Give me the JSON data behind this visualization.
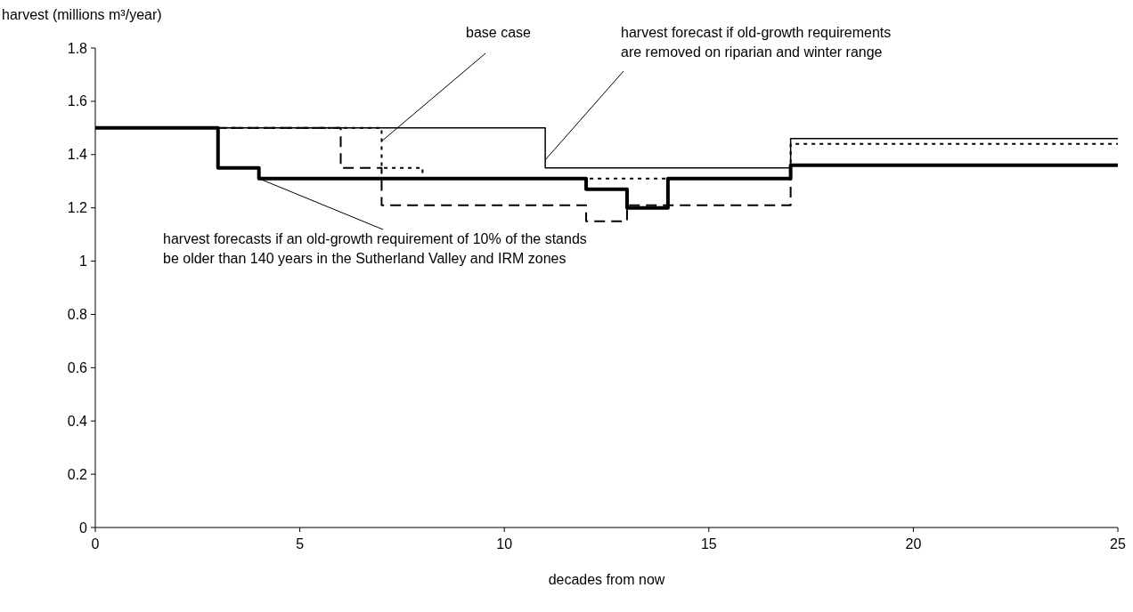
{
  "chart_data": {
    "type": "step",
    "ylabel": "harvest (millions m³/year)",
    "xlabel": "decades from now",
    "xlim": [
      0,
      25
    ],
    "xticks": [
      0,
      5,
      10,
      15,
      20,
      25
    ],
    "ylim": [
      0,
      1.8
    ],
    "yticks": [
      0,
      0.2,
      0.4,
      0.6,
      0.8,
      1,
      1.2,
      1.4,
      1.6,
      1.8
    ],
    "grid": false,
    "series": [
      {
        "color": "#000000",
        "line_style": "solid",
        "x": [
          0,
          11,
          17,
          25
        ],
        "values": [
          1.5,
          1.35,
          1.46,
          1.46
        ]
      },
      {
        "color": "#000000",
        "line_style": "dotted",
        "x": [
          0,
          7,
          8,
          17,
          25
        ],
        "values": [
          1.5,
          1.35,
          1.31,
          1.44,
          1.44
        ]
      },
      {
        "color": "#000000",
        "line_style": "dashed",
        "x": [
          0,
          6,
          7,
          12,
          13,
          17,
          25
        ],
        "values": [
          1.5,
          1.35,
          1.21,
          1.15,
          1.21,
          1.36,
          1.36
        ]
      },
      {
        "color": "#000000",
        "line_style": "solid",
        "x": [
          0,
          3,
          4,
          12,
          13,
          14,
          17,
          25
        ],
        "values": [
          1.5,
          1.35,
          1.31,
          1.27,
          1.2,
          1.31,
          1.36,
          1.36
        ]
      }
    ],
    "annotations": [
      {
        "text": "base case",
        "x": 7,
        "y": 1.45
      },
      {
        "text": "harvest forecast if old-growth requirements\nare removed on riparian and winter range",
        "x": 11,
        "y": 1.38
      },
      {
        "text": "harvest forecasts if an old-growth requirement of 10% of the stands\nbe older than 140 years in the Sutherland Valley and IRM zones",
        "x": 4,
        "y": 1.31
      }
    ]
  }
}
